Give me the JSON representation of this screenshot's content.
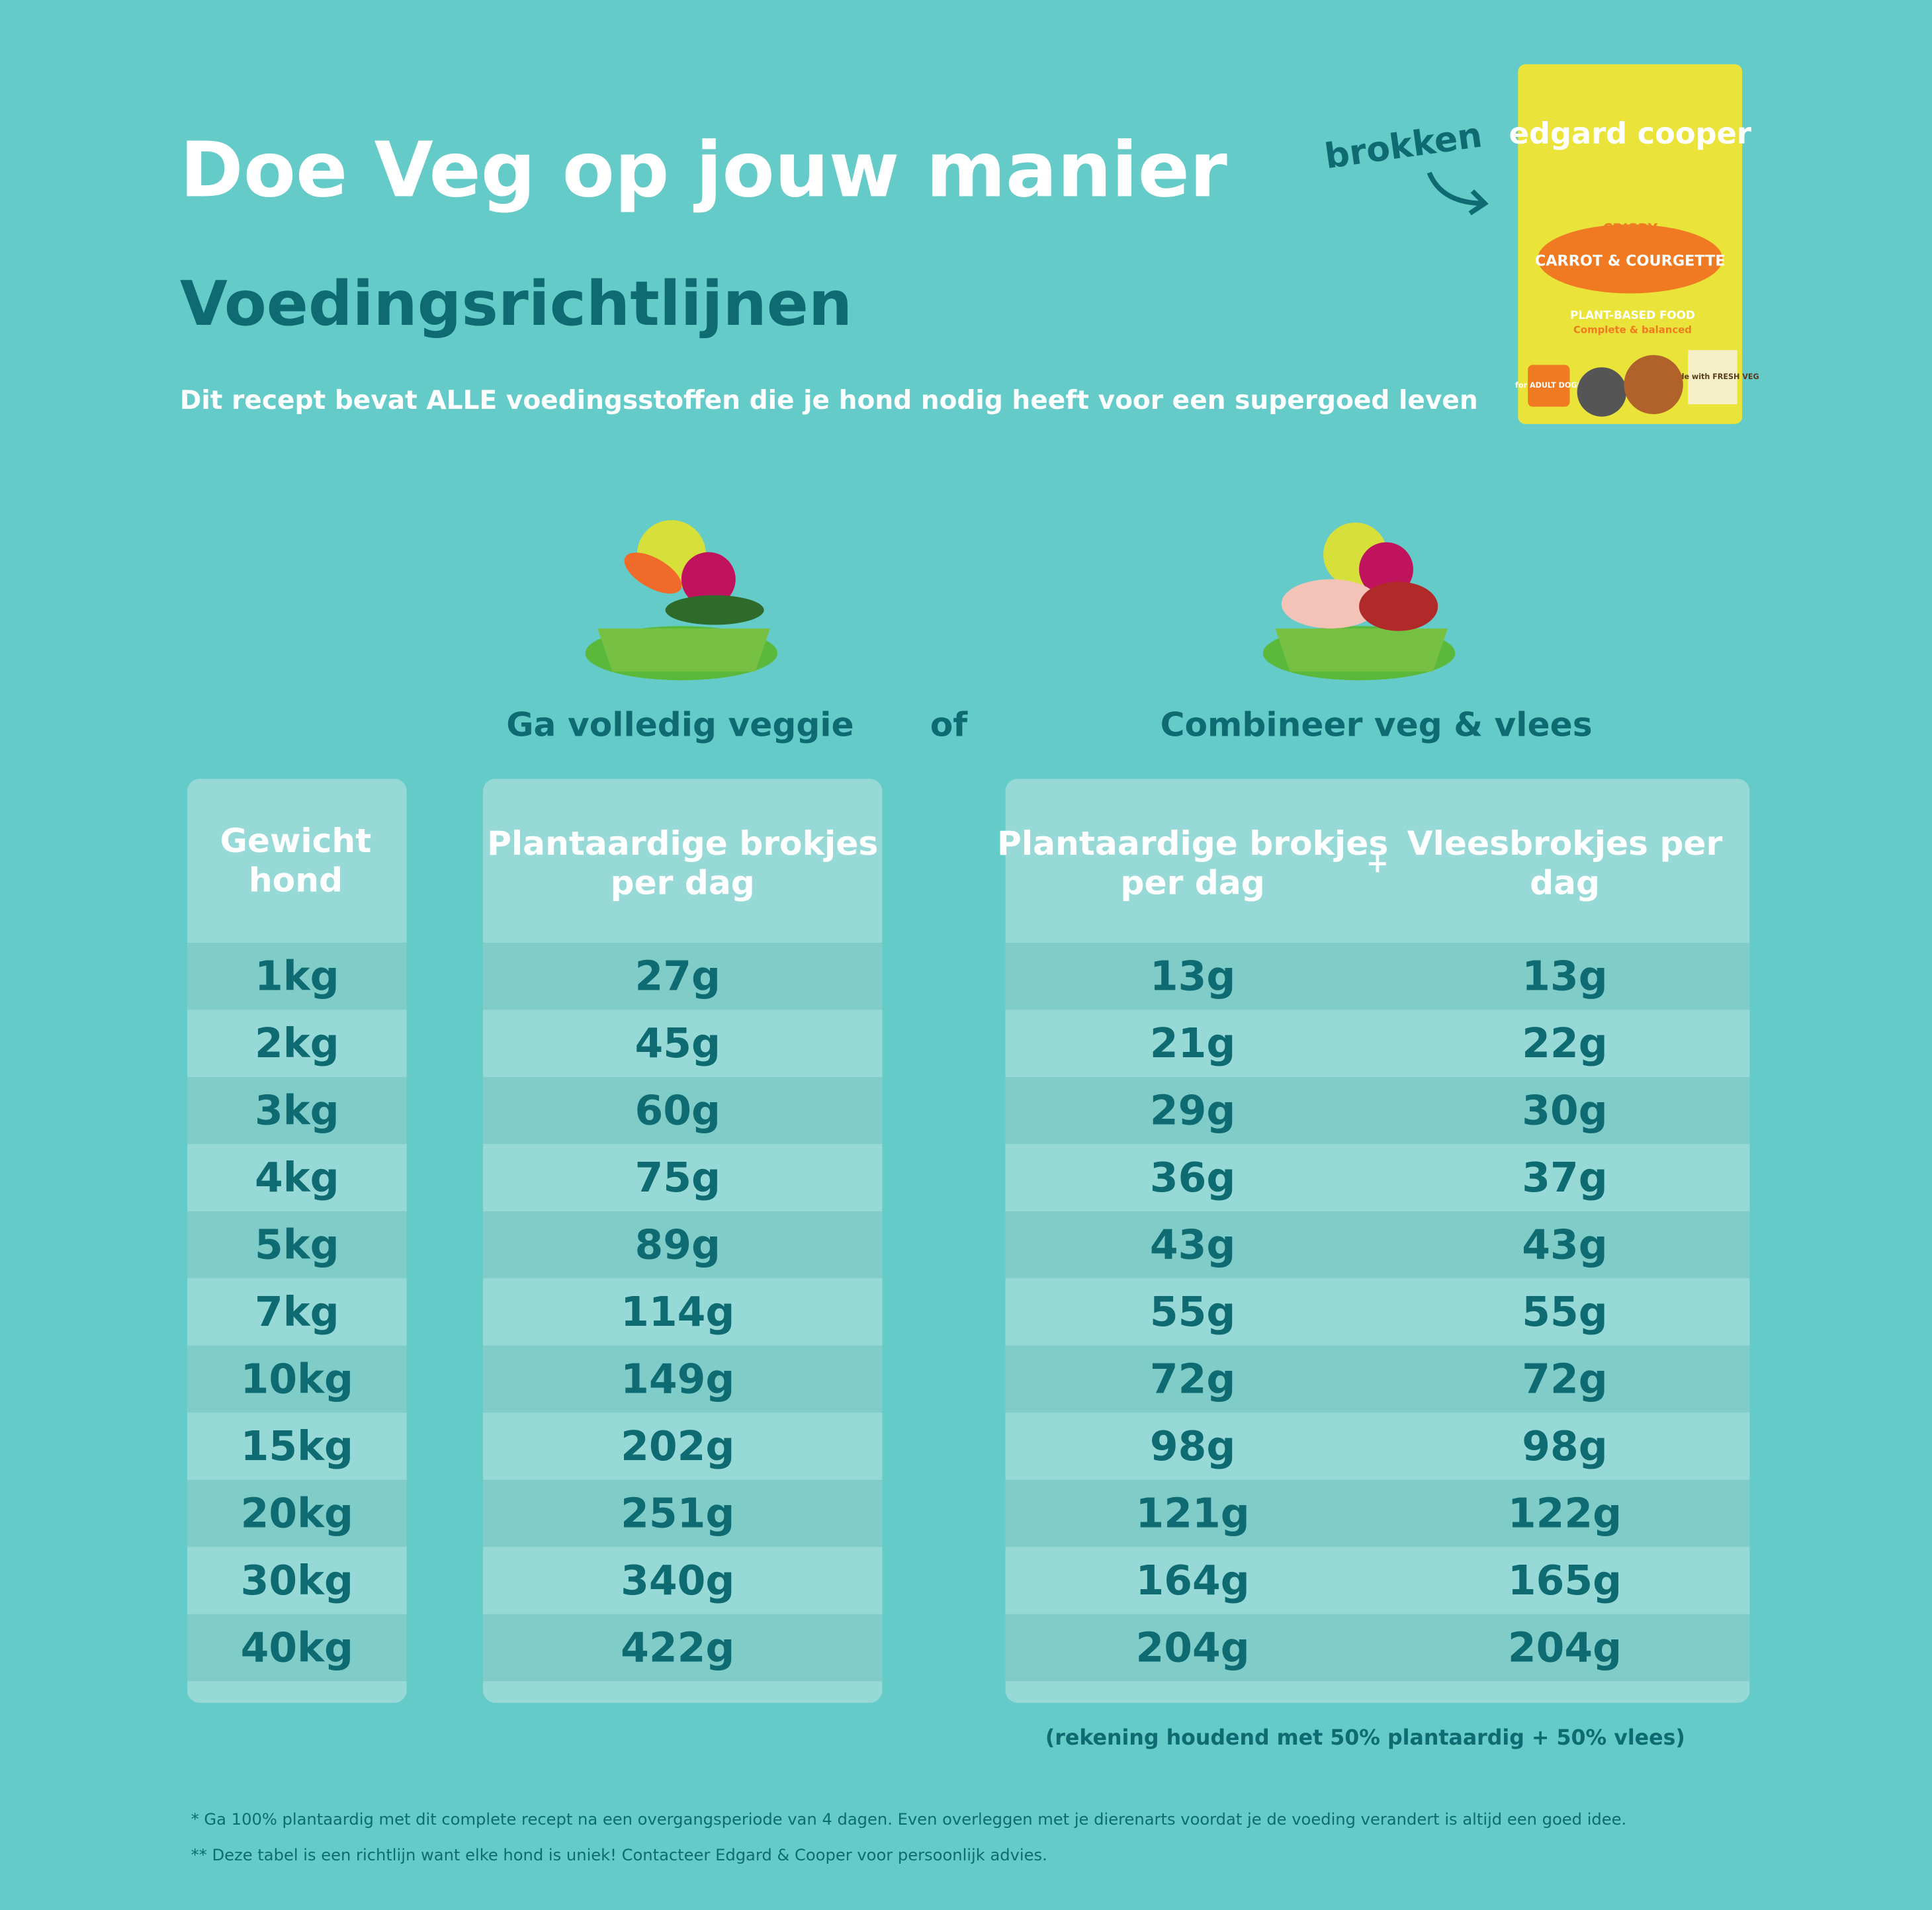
{
  "header": {
    "title": "Doe Veg op jouw manier",
    "subtitle": "Voedingsrichtlijnen",
    "description": "Dit recept bevat ALLE voedingsstoffen die je hond nodig heeft voor een supergoed leven",
    "pointer_label": "brokken"
  },
  "package": {
    "brand": "edgard cooper",
    "flavor_top": "CRISPY",
    "flavor": "CARROT & COURGETTE",
    "type": "PLANT-BASED FOOD",
    "claim": "Complete & balanced",
    "audience": "for ADULT DOGS",
    "badge": "made with FRESH VEG"
  },
  "options": {
    "veggie": "Ga volledig veggie",
    "connector": "of",
    "combo": "Combineer veg & vlees"
  },
  "weight_table": {
    "header": "Gewicht hond",
    "rows": [
      "1kg",
      "2kg",
      "3kg",
      "4kg",
      "5kg",
      "7kg",
      "10kg",
      "15kg",
      "20kg",
      "30kg",
      "40kg"
    ]
  },
  "veggie_table": {
    "header": "Plantaardige brokjes per dag",
    "rows": [
      "27g",
      "45g",
      "60g",
      "75g",
      "89g",
      "114g",
      "149g",
      "202g",
      "251g",
      "340g",
      "422g"
    ]
  },
  "combo_table": {
    "headers": [
      "Plantaardige brokjes per dag",
      "Vleesbrokjes per dag"
    ],
    "plus": "+",
    "rows": [
      [
        "13g",
        "13g"
      ],
      [
        "21g",
        "22g"
      ],
      [
        "29g",
        "30g"
      ],
      [
        "36g",
        "37g"
      ],
      [
        "43g",
        "43g"
      ],
      [
        "55g",
        "55g"
      ],
      [
        "72g",
        "72g"
      ],
      [
        "98g",
        "98g"
      ],
      [
        "121g",
        "122g"
      ],
      [
        "164g",
        "165g"
      ],
      [
        "204g",
        "204g"
      ]
    ],
    "note": "(rekening houdend met 50% plantaardig + 50% vlees)"
  },
  "footnotes": [
    "* Ga 100% plantaardig met dit complete recept na een overgangsperiode van 4 dagen. Even overleggen met je dierenarts voordat je de voeding verandert is altijd een goed idee.",
    "** Deze tabel is een richtlijn want elke hond is uniek! Contacteer Edgard & Cooper voor persoonlijk advies."
  ]
}
